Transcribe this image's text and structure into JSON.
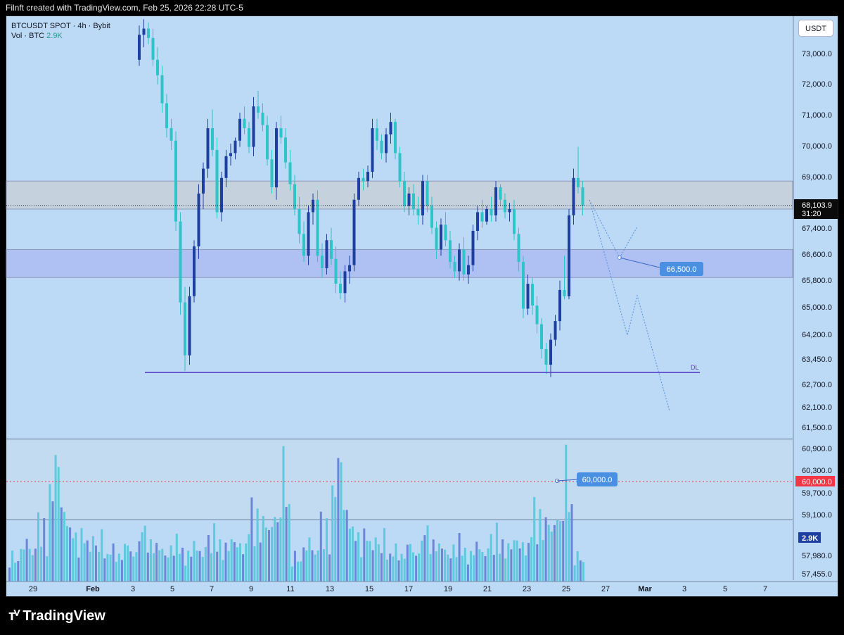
{
  "header": {
    "text": "Filnft created with TradingView.com, Feb 25, 2026 22:28 UTC-5"
  },
  "legend": {
    "symbol": "BTCUSDT SPOT · 4h · Bybit",
    "vol_label": "Vol · BTC",
    "vol_value": "2.9K"
  },
  "currency_button": "USDT",
  "brand": "TradingView",
  "colors": {
    "background": "#bcd9f5",
    "bull": "#1d3fa0",
    "bear": "#2ec4c8",
    "purple_line": "#5b3fc4",
    "price_tag": "#0b0b0b",
    "label_blue": "#4a90e2",
    "red": "#f23645"
  },
  "chart_data": {
    "type": "candlestick",
    "price_axis": {
      "ticks": [
        "73,000.0",
        "72,000.0",
        "71,000.0",
        "70,000.0",
        "69,000.0",
        "67,400.0",
        "66,600.0",
        "65,800.0",
        "65,000.0",
        "64,200.0",
        "63,450.0",
        "62,700.0",
        "62,100.0",
        "61,500.0",
        "60,900.0",
        "60,300.0",
        "59,700.0",
        "59,100.0",
        "57,980.0",
        "57,455.0"
      ]
    },
    "time_axis": {
      "ticks": [
        "29",
        "Feb",
        "3",
        "5",
        "7",
        "9",
        "11",
        "13",
        "15",
        "17",
        "19",
        "21",
        "23",
        "25",
        "27",
        "Mar",
        "3",
        "5",
        "7"
      ]
    },
    "last_price": {
      "value": "68,103.9",
      "countdown": "31:20"
    },
    "volume_tag": "2.9K",
    "zones": [
      {
        "name": "resistance",
        "from": 68000,
        "to": 68900,
        "color": "#c9cdd6"
      },
      {
        "name": "support",
        "from": 65800,
        "to": 66700,
        "color": "#a9b8f0"
      }
    ],
    "levels": [
      {
        "name": "DL",
        "price": 62750
      },
      {
        "name": "red-line",
        "price": 60000
      }
    ],
    "labels": [
      {
        "text": "66,500.0",
        "price": 66500
      },
      {
        "text": "60,000.0",
        "price": 60000
      },
      {
        "text": "60,000.0",
        "price": 60000,
        "axis": true
      },
      {
        "text": "DL",
        "price": 62750
      }
    ],
    "candles": [
      [
        72800,
        73900,
        72600,
        73600
      ],
      [
        73600,
        74100,
        73200,
        73800
      ],
      [
        73800,
        74000,
        73300,
        73500
      ],
      [
        73500,
        73800,
        72600,
        72800
      ],
      [
        72800,
        73200,
        72000,
        72300
      ],
      [
        72300,
        72600,
        71100,
        71400
      ],
      [
        71400,
        71700,
        70300,
        70600
      ],
      [
        70600,
        70900,
        69900,
        70200
      ],
      [
        70200,
        70500,
        67300,
        67600
      ],
      [
        67600,
        67900,
        64600,
        65000
      ],
      [
        65000,
        65500,
        62800,
        63300
      ],
      [
        63300,
        65500,
        63000,
        65200
      ],
      [
        65200,
        67000,
        65000,
        66800
      ],
      [
        66800,
        68800,
        66400,
        68500
      ],
      [
        68500,
        69500,
        68000,
        69300
      ],
      [
        69300,
        70900,
        69000,
        70600
      ],
      [
        70600,
        71200,
        69700,
        69900
      ],
      [
        69900,
        70300,
        67700,
        67900
      ],
      [
        67900,
        69200,
        67600,
        69000
      ],
      [
        69000,
        69900,
        68700,
        69700
      ],
      [
        69700,
        70100,
        69400,
        69800
      ],
      [
        69800,
        70300,
        69600,
        70200
      ],
      [
        70200,
        71100,
        70000,
        70900
      ],
      [
        70900,
        71300,
        70400,
        70600
      ],
      [
        70600,
        70800,
        69800,
        70000
      ],
      [
        70000,
        71600,
        69700,
        71300
      ],
      [
        71300,
        71800,
        70900,
        71100
      ],
      [
        71100,
        71400,
        70500,
        70700
      ],
      [
        70700,
        71000,
        69400,
        69600
      ],
      [
        69600,
        69900,
        68500,
        68700
      ],
      [
        68700,
        70800,
        68300,
        70600
      ],
      [
        70600,
        71000,
        70100,
        70300
      ],
      [
        70300,
        70600,
        69300,
        69500
      ],
      [
        69500,
        69900,
        68600,
        68800
      ],
      [
        68800,
        69100,
        67800,
        68000
      ],
      [
        68000,
        68400,
        66900,
        67200
      ],
      [
        67200,
        67600,
        66300,
        66500
      ],
      [
        66500,
        68100,
        66200,
        67900
      ],
      [
        67900,
        68500,
        67500,
        68300
      ],
      [
        68300,
        68600,
        66300,
        66500
      ],
      [
        66500,
        66900,
        65800,
        66100
      ],
      [
        66100,
        67200,
        65900,
        67000
      ],
      [
        67000,
        67400,
        66200,
        66400
      ],
      [
        66400,
        66800,
        65300,
        65600
      ],
      [
        65600,
        66000,
        65100,
        65300
      ],
      [
        65300,
        66200,
        65000,
        66000
      ],
      [
        66000,
        66500,
        65600,
        66200
      ],
      [
        66200,
        68500,
        66000,
        68300
      ],
      [
        68300,
        69200,
        68100,
        69000
      ],
      [
        69000,
        69300,
        68600,
        68900
      ],
      [
        68900,
        69400,
        68700,
        69200
      ],
      [
        69200,
        70900,
        69000,
        70600
      ],
      [
        70600,
        70900,
        69900,
        70200
      ],
      [
        70200,
        70400,
        69600,
        69800
      ],
      [
        69800,
        70600,
        69500,
        70400
      ],
      [
        70400,
        71100,
        70100,
        70800
      ],
      [
        70800,
        70900,
        69600,
        69800
      ],
      [
        69800,
        70000,
        68700,
        68900
      ],
      [
        68900,
        69200,
        67900,
        68100
      ],
      [
        68100,
        68700,
        67800,
        68500
      ],
      [
        68500,
        68800,
        67800,
        68000
      ],
      [
        68000,
        68400,
        67500,
        67800
      ],
      [
        67800,
        69100,
        67500,
        68900
      ],
      [
        68900,
        69100,
        67900,
        68100
      ],
      [
        68100,
        68400,
        67200,
        67400
      ],
      [
        67400,
        67600,
        66400,
        66700
      ],
      [
        66700,
        67700,
        66500,
        67500
      ],
      [
        67500,
        67900,
        66800,
        67000
      ],
      [
        67000,
        67300,
        66100,
        66300
      ],
      [
        66300,
        66500,
        65800,
        66000
      ],
      [
        66000,
        66900,
        65700,
        66700
      ],
      [
        66700,
        67100,
        65700,
        65900
      ],
      [
        65900,
        66500,
        65600,
        66200
      ],
      [
        66200,
        67500,
        66000,
        67300
      ],
      [
        67300,
        68100,
        67000,
        67900
      ],
      [
        67900,
        68300,
        67400,
        67600
      ],
      [
        67600,
        68100,
        67500,
        68000
      ],
      [
        68000,
        68400,
        67600,
        67800
      ],
      [
        67800,
        68900,
        67600,
        68700
      ],
      [
        68700,
        68800,
        68100,
        68300
      ],
      [
        68300,
        68500,
        67700,
        67900
      ],
      [
        67900,
        68200,
        67600,
        68000
      ],
      [
        68000,
        68300,
        67000,
        67200
      ],
      [
        67200,
        67400,
        66000,
        66300
      ],
      [
        66300,
        66500,
        64500,
        64800
      ],
      [
        64800,
        65900,
        64600,
        65600
      ],
      [
        65600,
        65800,
        64600,
        64900
      ],
      [
        64900,
        65200,
        64000,
        64300
      ],
      [
        64300,
        64500,
        63200,
        63500
      ],
      [
        63500,
        63700,
        62700,
        63000
      ],
      [
        63000,
        64000,
        62600,
        63800
      ],
      [
        63800,
        64600,
        63600,
        64400
      ],
      [
        64400,
        65700,
        64100,
        65400
      ],
      [
        65400,
        66500,
        65100,
        65200
      ],
      [
        65200,
        68000,
        65100,
        67800
      ],
      [
        67800,
        69300,
        67500,
        69000
      ],
      [
        69000,
        70000,
        68500,
        68700
      ],
      [
        68700,
        68900,
        67800,
        68103.9
      ]
    ],
    "volume": [
      [
        0.18,
        0.22,
        0.2,
        0.15,
        0.3,
        0.25,
        0.35,
        0.28,
        0.2,
        0.32,
        0.5,
        0.4,
        0.45,
        0.3,
        0.7,
        0.8,
        0.95,
        1.0,
        0.6,
        0.55,
        0.5,
        0.4,
        0.45,
        0.35,
        0.3,
        0.38,
        0.42,
        0.3,
        0.28,
        0.35,
        0.3,
        0.25,
        0.4,
        0.22,
        0.2,
        0.3,
        0.27,
        0.24,
        0.2,
        0.22,
        0.28,
        0.32,
        0.24,
        0.2,
        0.26,
        0.3,
        0.5,
        0.4,
        0.35,
        0.3,
        0.32,
        0.28,
        0.3,
        0.25,
        0.22,
        0.2,
        0.28,
        0.24,
        0.35,
        0.3,
        0.24,
        0.2,
        0.22,
        0.26,
        0.3,
        0.28,
        0.24,
        0.2,
        0.3,
        0.35,
        0.28,
        0.42,
        0.35,
        0.3,
        0.25,
        0.28,
        0.3,
        0.32,
        0.34,
        0.28,
        0.3,
        0.25,
        0.28,
        0.5,
        0.6,
        0.45,
        0.52,
        0.42,
        0.48,
        0.5,
        0.4,
        0.45,
        0.55,
        0.45,
        0.62,
        0.98,
        0.85,
        0.55
      ]
    ]
  }
}
